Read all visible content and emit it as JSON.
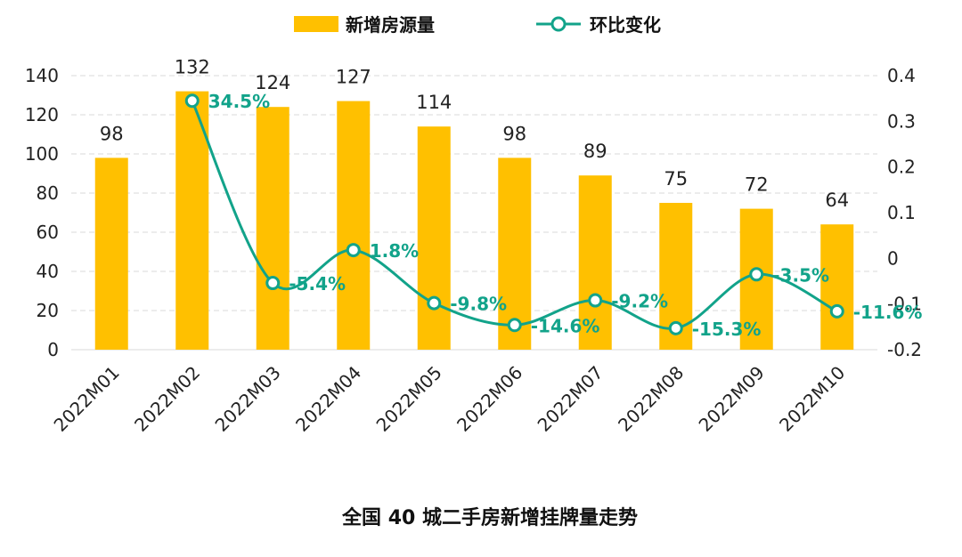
{
  "chart_data": {
    "type": "bar+line",
    "title": "全国 40 城二手房新增挂牌量走势",
    "categories": [
      "2022M01",
      "2022M02",
      "2022M03",
      "2022M04",
      "2022M05",
      "2022M06",
      "2022M07",
      "2022M08",
      "2022M09",
      "2022M10"
    ],
    "series": [
      {
        "name": "新增房源量",
        "type": "bar",
        "axis": "left",
        "values": [
          98,
          132,
          124,
          127,
          114,
          98,
          89,
          75,
          72,
          64
        ],
        "labels": [
          "98",
          "132",
          "124",
          "127",
          "114",
          "98",
          "89",
          "75",
          "72",
          "64"
        ]
      },
      {
        "name": "环比变化",
        "type": "line",
        "axis": "right",
        "values": [
          null,
          0.345,
          -0.054,
          0.018,
          -0.098,
          -0.146,
          -0.092,
          -0.153,
          -0.035,
          -0.116
        ],
        "labels": [
          "",
          "34.5%",
          "-5.4%",
          "1.8%",
          "-9.8%",
          "-14.6%",
          "-9.2%",
          "-15.3%",
          "-3.5%",
          "-11.6%"
        ]
      }
    ],
    "left_axis": {
      "min": 0,
      "max": 140,
      "ticks": [
        "0",
        "20",
        "40",
        "60",
        "80",
        "100",
        "120",
        "140"
      ]
    },
    "right_axis": {
      "min": -0.2,
      "max": 0.4,
      "ticks": [
        "-0.2",
        "-0.1",
        "0",
        "0.1",
        "0.2",
        "0.3",
        "0.4"
      ]
    },
    "legend": {
      "position": "top-center",
      "entries": [
        "新增房源量",
        "环比变化"
      ]
    },
    "grid": true
  },
  "colors": {
    "bar": "#ffc000",
    "line": "#12a38a",
    "grid": "#d9d9d9"
  }
}
